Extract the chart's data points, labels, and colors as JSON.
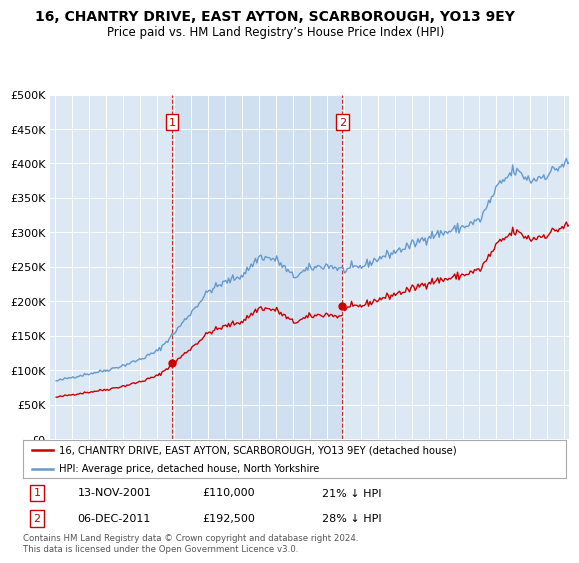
{
  "title": "16, CHANTRY DRIVE, EAST AYTON, SCARBOROUGH, YO13 9EY",
  "subtitle": "Price paid vs. HM Land Registry’s House Price Index (HPI)",
  "legend_line1": "16, CHANTRY DRIVE, EAST AYTON, SCARBOROUGH, YO13 9EY (detached house)",
  "legend_line2": "HPI: Average price, detached house, North Yorkshire",
  "footnote": "Contains HM Land Registry data © Crown copyright and database right 2024.\nThis data is licensed under the Open Government Licence v3.0.",
  "transaction1_date": "13-NOV-2001",
  "transaction1_price": "£110,000",
  "transaction1_hpi": "21% ↓ HPI",
  "transaction2_date": "06-DEC-2011",
  "transaction2_price": "£192,500",
  "transaction2_hpi": "28% ↓ HPI",
  "sale_color": "#cc0000",
  "hpi_color": "#6699cc",
  "shade_color": "#dce9f5",
  "vline_color": "#cc0000",
  "background_color": "#dce9f5",
  "ylim": [
    0,
    500000
  ],
  "yticks": [
    0,
    50000,
    100000,
    150000,
    200000,
    250000,
    300000,
    350000,
    400000,
    450000,
    500000
  ],
  "sale_year1": 2001.88,
  "sale_year2": 2011.92,
  "sale_value1": 110000,
  "sale_value2": 192500,
  "xmin": 1994.7,
  "xmax": 2025.3,
  "label1_yval": 460000,
  "label2_yval": 460000
}
